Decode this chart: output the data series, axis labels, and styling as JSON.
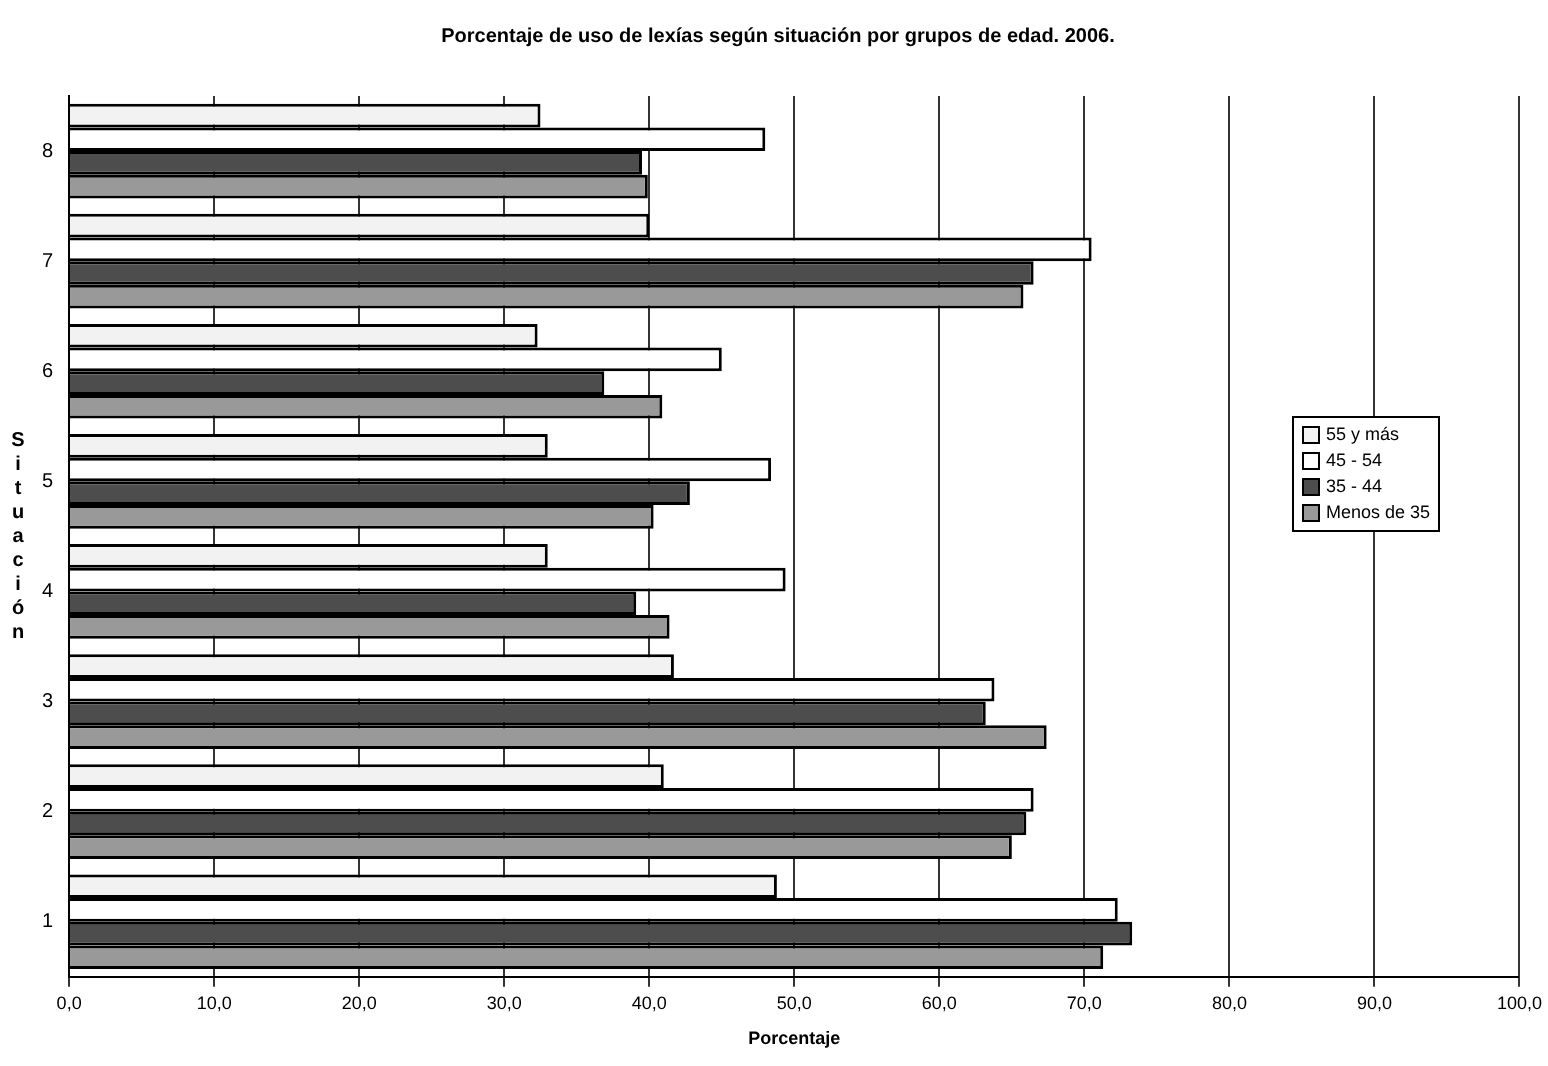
{
  "chart_data": {
    "type": "bar",
    "orientation": "horizontal",
    "title": "Porcentaje de uso de lexías según situación por grupos de edad. 2006.",
    "xlabel": "Porcentaje",
    "ylabel": "Situación",
    "categories": [
      "8",
      "7",
      "6",
      "5",
      "4",
      "3",
      "2",
      "1"
    ],
    "series": [
      {
        "name": "55 y más",
        "color": "#f2f2f2",
        "values": [
          32.5,
          40,
          32.3,
          33,
          33,
          41.7,
          41,
          48.8
        ]
      },
      {
        "name": "45 - 54",
        "color": "#ffffff",
        "values": [
          48,
          70.5,
          45,
          48.4,
          49.4,
          63.8,
          66.5,
          72.3
        ]
      },
      {
        "name": "35 - 44",
        "color": "#4d4d4d",
        "values": [
          39.5,
          66.5,
          36.9,
          42.8,
          39.1,
          63.2,
          66,
          73.3
        ]
      },
      {
        "name": "Menos de 35",
        "color": "#999999",
        "values": [
          39.9,
          65.8,
          40.9,
          40.3,
          41.4,
          67.4,
          65,
          71.3
        ]
      }
    ],
    "xlim": [
      0,
      100
    ],
    "xticks": [
      {
        "value": 0,
        "label": "0,0"
      },
      {
        "value": 10,
        "label": "10,0"
      },
      {
        "value": 20,
        "label": "20,0"
      },
      {
        "value": 30,
        "label": "30,0"
      },
      {
        "value": 40,
        "label": "40,0"
      },
      {
        "value": 50,
        "label": "50,0"
      },
      {
        "value": 60,
        "label": "60,0"
      },
      {
        "value": 70,
        "label": "70,0"
      },
      {
        "value": 80,
        "label": "80,0"
      },
      {
        "value": 90,
        "label": "90,0"
      },
      {
        "value": 100,
        "label": "100,0"
      }
    ],
    "grid": "x",
    "legend": "right"
  }
}
